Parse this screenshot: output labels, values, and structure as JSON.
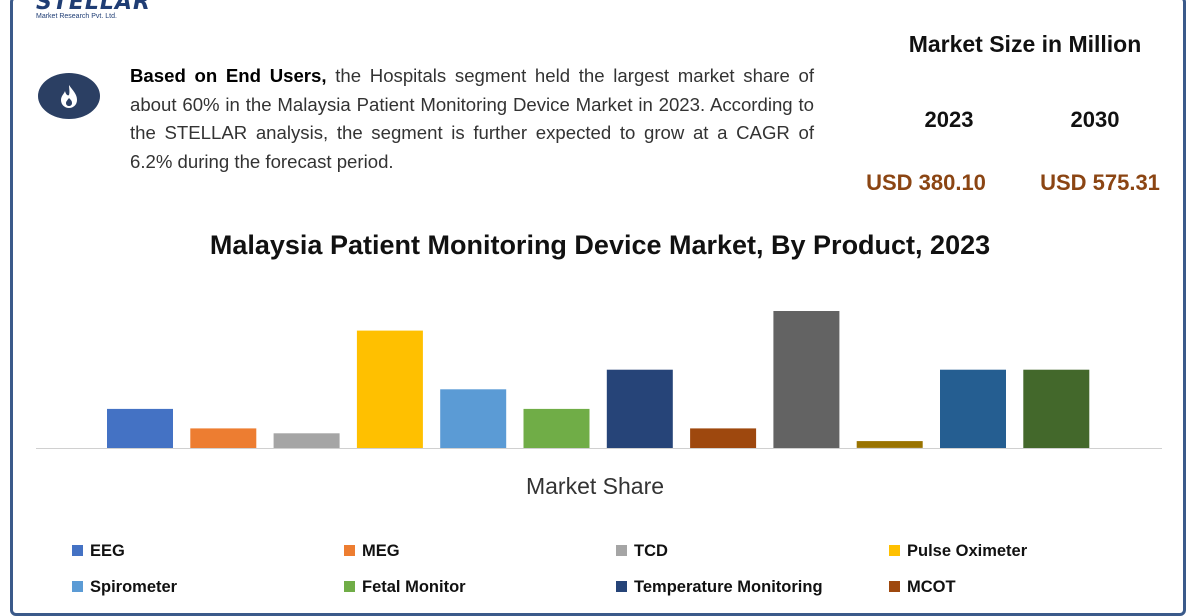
{
  "header": {
    "logo_text": "STELLAR",
    "logo_sub": "Market Research Pvt. Ltd."
  },
  "info": {
    "lead": "Based on End Users,",
    "body": " the Hospitals segment held the largest market share of about 60% in the Malaysia Patient Monitoring Device Market in 2023. According to the STELLAR analysis, the segment is further expected to grow at a CAGR of 6.2% during the forecast period."
  },
  "market_size": {
    "title": "Market Size in Million",
    "year1": "2023",
    "year2": "2030",
    "value1": "USD 380.10",
    "value2": "USD 575.31"
  },
  "icon": "fire-icon",
  "chart_data": {
    "type": "bar",
    "title": "Malaysia Patient Monitoring Device Market, By Product, 2023",
    "xlabel": "Market Share",
    "ylabel": "",
    "ylim": [
      0,
      14
    ],
    "grid": false,
    "legend_position": "bottom",
    "categories": [
      "EEG",
      "MEG",
      "TCD",
      "Pulse Oximeter",
      "Spirometer",
      "Fetal Monitor",
      "Temperature Monitoring",
      "MCOT",
      "",
      "",
      "",
      ""
    ],
    "values": [
      4,
      2,
      1.5,
      12,
      6,
      4,
      8,
      2,
      14,
      0.7,
      8,
      8
    ],
    "colors": [
      "#4472c4",
      "#ed7d31",
      "#a5a5a5",
      "#ffc000",
      "#5b9bd5",
      "#70ad47",
      "#264478",
      "#9e480e",
      "#636363",
      "#997300",
      "#255e91",
      "#43682b"
    ]
  }
}
